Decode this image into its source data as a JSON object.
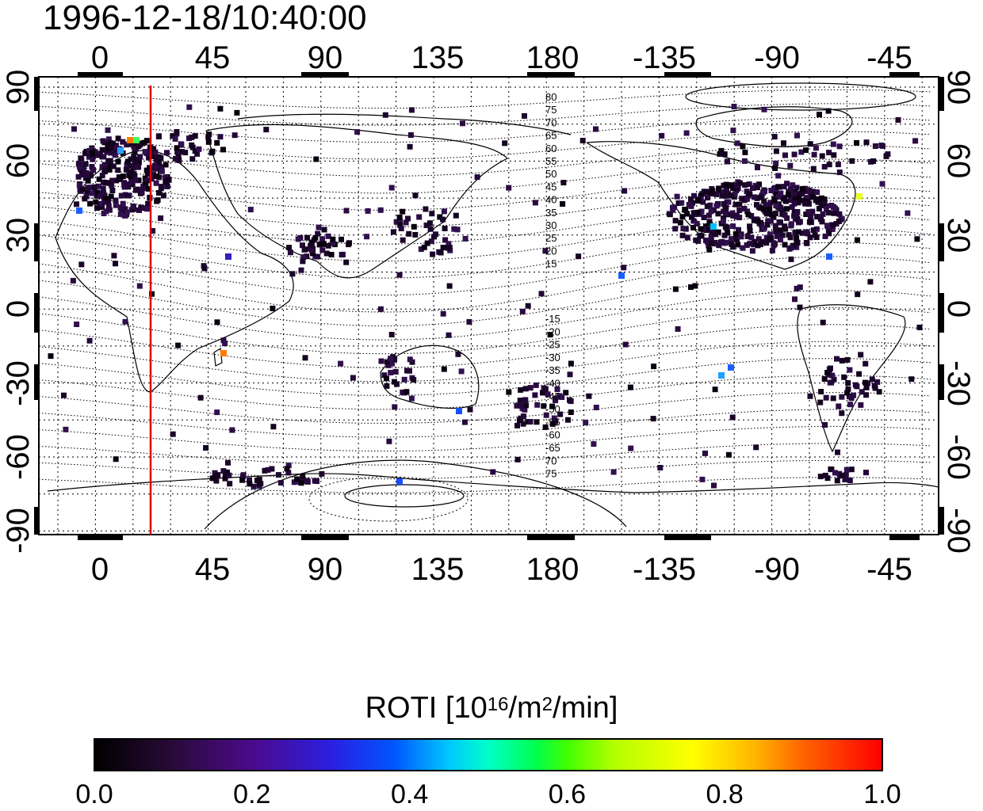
{
  "title": "1996-12-18/10:40:00",
  "map": {
    "top_axis_labels": [
      "0",
      "45",
      "90",
      "135",
      "180",
      "-135",
      "-90",
      "-45"
    ],
    "bottom_axis_labels": [
      "0",
      "45",
      "90",
      "135",
      "180",
      "-135",
      "-90",
      "-45"
    ],
    "left_axis_labels": [
      "90",
      "60",
      "30",
      "0",
      "-30",
      "-60",
      "-90"
    ],
    "right_axis_labels": [
      "90",
      "60",
      "30",
      "0",
      "-30",
      "-60",
      "-90"
    ],
    "contour_labels_north": [
      "80",
      "75",
      "70",
      "65",
      "60",
      "55",
      "50",
      "45",
      "40",
      "35",
      "30",
      "25",
      "20",
      "15"
    ],
    "contour_labels_south": [
      "-15",
      "-20",
      "-25",
      "-30",
      "-35",
      "-40",
      "-45",
      "-50",
      "-55",
      "-60",
      "-65",
      "70",
      "75"
    ],
    "terminator_color": "#e00000"
  },
  "colorbar": {
    "title_text": "ROTI  [10",
    "title_exp": "16",
    "title_mid": "/m",
    "title_exp2": "2",
    "title_end": "/min]",
    "ticks": [
      "0.0",
      "0.2",
      "0.4",
      "0.6",
      "0.8",
      "1.0"
    ],
    "range": [
      0.0,
      1.0
    ]
  }
}
